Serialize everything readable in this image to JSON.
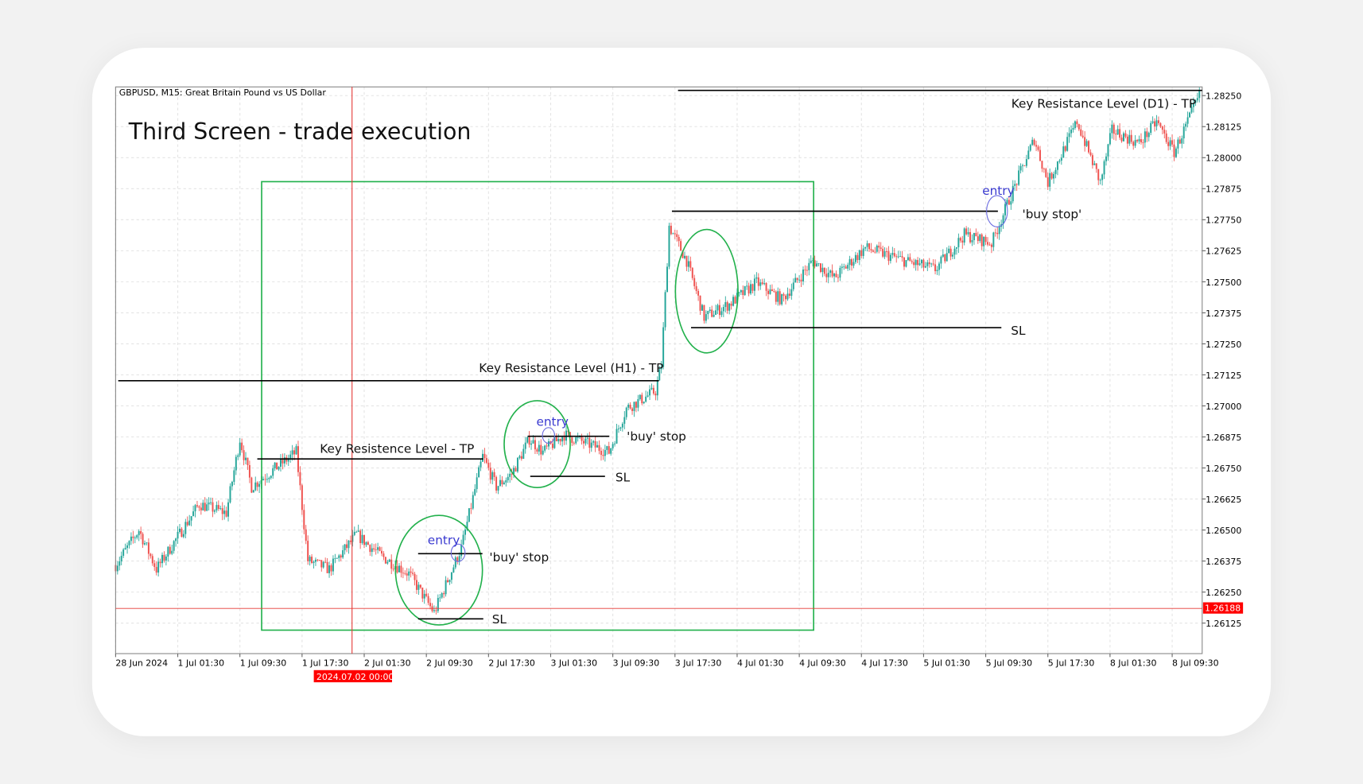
{
  "header": "GBPUSD, M15:  Great Britain Pound vs US Dollar",
  "title": "Third Screen - trade execution",
  "chart_data": {
    "type": "candlestick",
    "symbol": "GBPUSD",
    "timeframe": "M15",
    "ylim": [
      1.2608,
      1.2832
    ],
    "grid": true,
    "y_ticks": [
      "1.28250",
      "1.28125",
      "1.28000",
      "1.27875",
      "1.27750",
      "1.27625",
      "1.27500",
      "1.27375",
      "1.27250",
      "1.27125",
      "1.27000",
      "1.26875",
      "1.26750",
      "1.26625",
      "1.26500",
      "1.26375",
      "1.26250",
      "1.26125"
    ],
    "x_ticks": [
      "28 Jun 2024",
      "1 Jul 01:30",
      "1 Jul 09:30",
      "1 Jul 17:30",
      "2 Jul 01:30",
      "2 Jul 09:30",
      "2 Jul 17:30",
      "3 Jul 01:30",
      "3 Jul 09:30",
      "3 Jul 17:30",
      "4 Jul 01:30",
      "4 Jul 09:30",
      "4 Jul 17:30",
      "5 Jul 01:30",
      "5 Jul 09:30",
      "5 Jul 17:30",
      "8 Jul 01:30",
      "8 Jul 09:30"
    ],
    "price_path": [
      [
        "28 Jun 17:30",
        1.26359
      ],
      [
        "28 Jun 20:30",
        1.26499
      ],
      [
        "28 Jun 22:45",
        1.26342
      ],
      [
        "1 Jul 04:15",
        1.26604
      ],
      [
        "1 Jul 07:45",
        1.26569
      ],
      [
        "1 Jul 09:30",
        1.26867
      ],
      [
        "1 Jul 11:00",
        1.26674
      ],
      [
        "1 Jul 16:45",
        1.26814
      ],
      [
        "1 Jul 18:15",
        1.26377
      ],
      [
        "1 Jul 21:00",
        1.26342
      ],
      [
        "2 Jul 00:30",
        1.26482
      ],
      [
        "2 Jul 03:45",
        1.26394
      ],
      [
        "2 Jul 07:15",
        1.26324
      ],
      [
        "2 Jul 10:30",
        1.26167
      ],
      [
        "2 Jul 14:00",
        1.26429
      ],
      [
        "2 Jul 16:45",
        1.26797
      ],
      [
        "2 Jul 18:30",
        1.26674
      ],
      [
        "2 Jul 20:30",
        1.26727
      ],
      [
        "2 Jul 22:45",
        1.26867
      ],
      [
        "3 Jul 00:30",
        1.26814
      ],
      [
        "3 Jul 03:15",
        1.26884
      ],
      [
        "3 Jul 09:00",
        1.26814
      ],
      [
        "3 Jul 11:15",
        1.2699
      ],
      [
        "3 Jul 15:00",
        1.2706
      ],
      [
        "3 Jul 15:45",
        1.27165
      ],
      [
        "3 Jul 16:45",
        1.27725
      ],
      [
        "3 Jul 19:00",
        1.27585
      ],
      [
        "3 Jul 21:15",
        1.27357
      ],
      [
        "4 Jul 00:30",
        1.2741
      ],
      [
        "4 Jul 04:00",
        1.27497
      ],
      [
        "4 Jul 07:15",
        1.27427
      ],
      [
        "4 Jul 11:15",
        1.27585
      ],
      [
        "4 Jul 14:00",
        1.27515
      ],
      [
        "4 Jul 18:00",
        1.27637
      ],
      [
        "4 Jul 23:00",
        1.27585
      ],
      [
        "5 Jul 03:00",
        1.2755
      ],
      [
        "5 Jul 06:45",
        1.2769
      ],
      [
        "5 Jul 10:15",
        1.27655
      ],
      [
        "5 Jul 12:30",
        1.2783
      ],
      [
        "5 Jul 15:45",
        1.28075
      ],
      [
        "5 Jul 17:30",
        1.279
      ],
      [
        "5 Jul 21:15",
        1.28145
      ],
      [
        "8 Jul 00:15",
        1.279
      ],
      [
        "8 Jul 01:45",
        1.2811
      ],
      [
        "8 Jul 05:15",
        1.28057
      ],
      [
        "8 Jul 07:30",
        1.28145
      ],
      [
        "8 Jul 09:45",
        1.28022
      ],
      [
        "8 Jul 13:00",
        1.2825
      ]
    ],
    "bull_color": "#26a69a",
    "bear_color": "#ef5350",
    "crosshair": {
      "time_label": "2024.07.02 00:00",
      "price_label": "1.26188",
      "price": 1.26188,
      "color": "#ff0000"
    },
    "annotations": {
      "d1_tp": {
        "label": "Key Resistance Level (D1) - TP",
        "price": 1.2827
      },
      "h1_tp": {
        "label": "Key Resistance Level (H1) - TP",
        "price": 1.2711
      },
      "tp": {
        "label": "Key Resistence Level - TP",
        "price": 1.2677
      },
      "trade1": {
        "entry": "entry",
        "order": "'buy' stop",
        "sl": "SL"
      },
      "trade2": {
        "entry": "entry",
        "order": "'buy' stop",
        "sl": "SL"
      },
      "trade3": {
        "entry": "entry",
        "order": "'buy stop'",
        "sl": "SL"
      },
      "box_color": "#22b14c",
      "entry_color": "#3a3ad0"
    }
  }
}
